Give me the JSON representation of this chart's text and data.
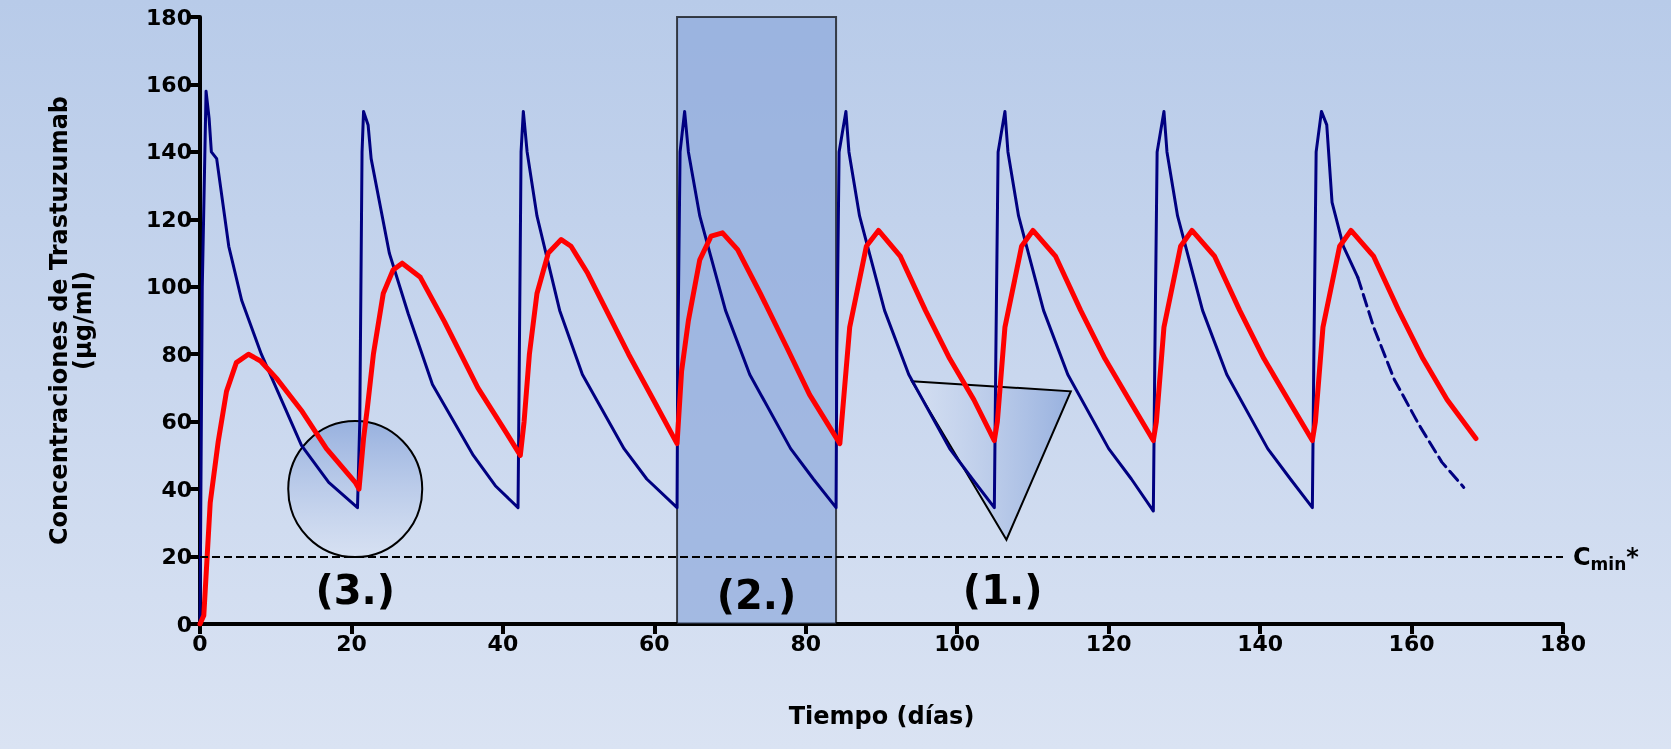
{
  "chart_data": {
    "type": "line",
    "xlabel": "Tiempo (días)",
    "ylabel": "Concentraciones de Trastuzumab\n(µg/ml)",
    "xlim": [
      0,
      180
    ],
    "xticks": [
      0,
      20,
      40,
      60,
      80,
      100,
      120,
      140,
      160,
      180
    ],
    "ylim": [
      0,
      180
    ],
    "yticks": [
      0,
      20,
      40,
      60,
      80,
      100,
      120,
      140,
      160,
      180
    ],
    "grid": false,
    "marker": "none",
    "series": [
      {
        "color": "#000080",
        "line_style": "solid",
        "x": [
          0,
          0.3,
          0.8,
          1.2,
          1.5,
          2.2,
          3.8,
          5.5,
          8.1,
          13.4,
          17,
          20.8,
          21.1,
          21.4,
          21.6,
          22.2,
          22.6,
          25,
          27.5,
          30.7,
          36.1,
          39,
          42,
          42.1,
          42.4,
          42.7,
          43.2,
          44.5,
          47.5,
          50.5,
          56,
          59,
          63,
          63.1,
          63.4,
          64,
          64.5,
          66,
          69.4,
          72.6,
          78,
          81,
          84,
          84.1,
          84.4,
          85.3,
          85.7,
          87.1,
          90.4,
          93.6,
          99,
          102,
          104.9,
          105.1,
          105.4,
          106.3,
          106.7,
          108.1,
          111.4,
          114.6,
          120,
          123,
          125.9,
          126.1,
          126.4,
          127.3,
          127.7,
          129.1,
          132.4,
          135.6,
          141,
          144,
          146.9,
          147.1,
          147.4,
          148.1,
          148.8,
          149.5,
          151,
          152.9
        ],
        "values": [
          0,
          100,
          158,
          150,
          140,
          138,
          112,
          96,
          80,
          53,
          42,
          34.5,
          60,
          140,
          152,
          148,
          138,
          110,
          92,
          71,
          50,
          41,
          34.5,
          60,
          140,
          152,
          140,
          121,
          93,
          74,
          52,
          43,
          34.5,
          80,
          140,
          152,
          140,
          121,
          93,
          74,
          52,
          43,
          34.5,
          80,
          140,
          152,
          140,
          121,
          93,
          74,
          52,
          43,
          34.5,
          80,
          140,
          152,
          140,
          121,
          93,
          74,
          52,
          43,
          33.5,
          80,
          140,
          152,
          140,
          121,
          93,
          74,
          52,
          43,
          34.5,
          80,
          140,
          152,
          148,
          125,
          112,
          102.8
        ]
      },
      {
        "color": "#ff0000",
        "line_style": "solid",
        "x": [
          0,
          0.5,
          1.35,
          2.4,
          3.5,
          4.8,
          6.4,
          8,
          10.2,
          13.5,
          16.7,
          20.5,
          21,
          21.6,
          22.1,
          22.9,
          24.2,
          25.5,
          26.7,
          29.1,
          32.3,
          36.7,
          40.4,
          42.3,
          42.8,
          43.5,
          44.5,
          46,
          47.7,
          49,
          51.2,
          56.6,
          60,
          63,
          63.6,
          64.5,
          66,
          67.5,
          69,
          71,
          74,
          77.5,
          80.5,
          84.5,
          85.8,
          88,
          89.6,
          92.5,
          95.8,
          99,
          102.2,
          104.9,
          105.3,
          106.3,
          108.5,
          110,
          113,
          116.3,
          119.5,
          122.7,
          125.9,
          126.3,
          127.3,
          129.5,
          131,
          134,
          137.3,
          140.5,
          143.7,
          146.9,
          147.3,
          148.3,
          150.5,
          152,
          155,
          158.3,
          161.5,
          164.7,
          168.5
        ],
        "values": [
          0,
          2.5,
          36,
          54,
          69,
          77.5,
          80,
          78,
          72.6,
          63,
          52,
          42,
          40,
          55,
          64,
          80,
          98,
          105,
          107,
          102.8,
          89.6,
          70,
          56.9,
          50,
          60,
          80,
          98,
          110,
          114,
          112,
          104,
          80,
          66,
          53.5,
          75,
          90,
          108,
          115,
          116,
          111,
          98,
          82,
          68,
          53.5,
          88,
          112,
          116.7,
          109,
          93,
          78.7,
          66.5,
          54.4,
          60,
          88,
          112,
          116.7,
          109,
          93,
          78.7,
          66.5,
          54.4,
          60,
          88,
          112,
          116.7,
          109,
          93,
          78.7,
          66.5,
          54.4,
          60,
          88,
          112,
          116.7,
          109,
          93,
          78.7,
          66.5,
          55
        ]
      },
      {
        "color": "#000080",
        "line_style": "dashed",
        "x": [
          152.9,
          155,
          157.7,
          161,
          164,
          166.9
        ],
        "values": [
          102.8,
          88,
          72.6,
          59,
          48,
          40.5
        ]
      }
    ],
    "ref_lines": [
      {
        "axis": "y",
        "value": 20,
        "label": "C$_{min}$*",
        "color": "#000000",
        "line_style": "dashed"
      }
    ],
    "bands": [
      {
        "axis": "x",
        "from": 63,
        "to": 84,
        "label": "(2.)",
        "color": "#8faadc"
      }
    ],
    "annotations": [
      "(3.)",
      "(1.)"
    ]
  }
}
